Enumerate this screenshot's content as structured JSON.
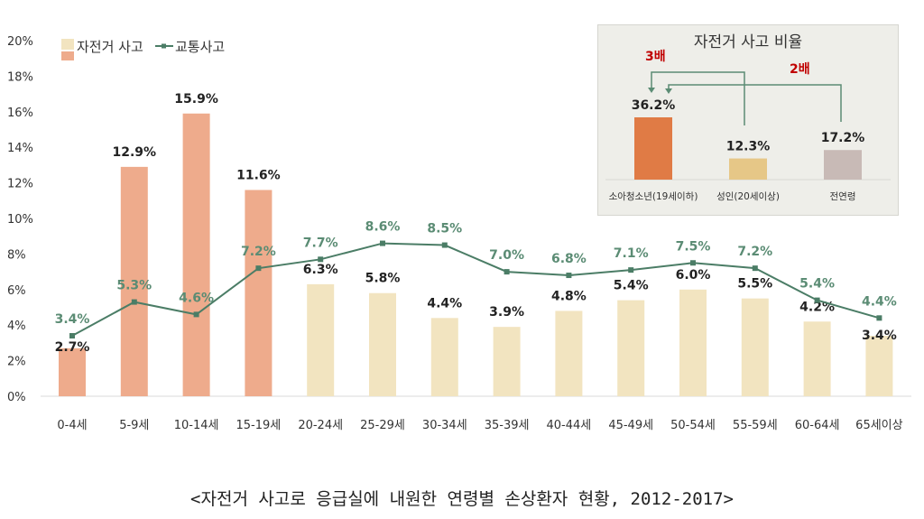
{
  "chart_data": {
    "type": "bar+line",
    "categories": [
      "0-4세",
      "5-9세",
      "10-14세",
      "15-19세",
      "20-24세",
      "25-29세",
      "30-34세",
      "35-39세",
      "40-44세",
      "45-49세",
      "50-54세",
      "55-59세",
      "60-64세",
      "65세이상"
    ],
    "yticks": [
      "0%",
      "2%",
      "4%",
      "6%",
      "8%",
      "10%",
      "12%",
      "14%",
      "16%",
      "18%",
      "20%"
    ],
    "ylim": [
      0,
      20
    ],
    "grid": false,
    "legend_position": "top-left",
    "series": [
      {
        "name": "자전거 사고",
        "type": "bar",
        "values": [
          2.7,
          12.9,
          15.9,
          11.6,
          6.3,
          5.8,
          4.4,
          3.9,
          4.8,
          5.4,
          6.0,
          5.5,
          4.2,
          3.4
        ],
        "labels": [
          "2.7%",
          "12.9%",
          "15.9%",
          "11.6%",
          "6.3%",
          "5.8%",
          "4.4%",
          "3.9%",
          "4.8%",
          "5.4%",
          "6.0%",
          "5.5%",
          "4.2%",
          "3.4%"
        ]
      },
      {
        "name": "교통사고",
        "type": "line",
        "values": [
          3.4,
          5.3,
          4.6,
          7.2,
          7.7,
          8.6,
          8.5,
          7.0,
          6.8,
          7.1,
          7.5,
          7.2,
          5.4,
          4.4
        ],
        "labels": [
          "3.4%",
          "5.3%",
          "4.6%",
          "7.2%",
          "7.7%",
          "8.6%",
          "8.5%",
          "7.0%",
          "6.8%",
          "7.1%",
          "7.5%",
          "7.2%",
          "5.4%",
          "4.4%"
        ]
      }
    ],
    "colors": {
      "bar_child": "#eeab8c",
      "bar_adult": "#f2e4c0",
      "line": "#4b7d66",
      "line_label": "#5b8c74"
    }
  },
  "inset": {
    "title": "자전거 사고 비율",
    "ratio_3x": "3배",
    "ratio_2x": "2배",
    "bars": [
      {
        "label": "소아청소년(19세이하)",
        "value": 36.2,
        "text": "36.2%",
        "color": "#e07b45"
      },
      {
        "label": "성인(20세이상)",
        "value": 12.3,
        "text": "12.3%",
        "color": "#e6c787"
      },
      {
        "label": "전연령",
        "value": 17.2,
        "text": "17.2%",
        "color": "#c8bab6"
      }
    ],
    "ratio_color": "#c00000"
  },
  "caption": "<자전거 사고로 응급실에 내원한 연령별 손상환자 현황, 2012-2017>"
}
